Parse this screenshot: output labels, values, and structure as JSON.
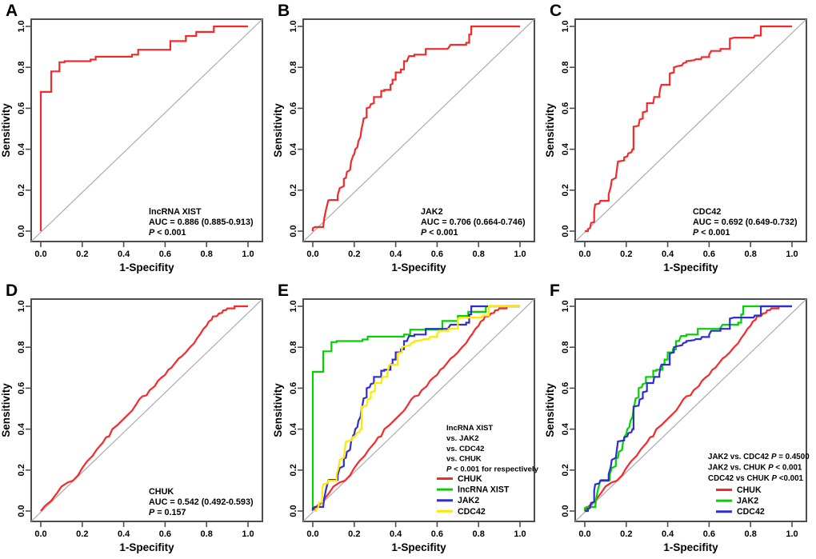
{
  "figure_title": "ROC curve figure, panels A-F",
  "colors": {
    "red": "#F42A2A",
    "green": "#00D300",
    "blue": "#2E2ED0",
    "yellow": "#FFE800",
    "diagonal": "#ABABAB",
    "box": "#4D4D4D",
    "text": "#000000",
    "background": "#FFFFFF"
  },
  "axes": {
    "x_label": "1-Specifity",
    "y_label": "Sensitivity",
    "tick_values": [
      0,
      0.2,
      0.4,
      0.6,
      0.8,
      1
    ],
    "tick_labels": [
      "0.0",
      "0.2",
      "0.4",
      "0.6",
      "0.8",
      "1.0"
    ],
    "xlim": [
      0,
      1
    ],
    "ylim": [
      0,
      1
    ],
    "grid": "off",
    "diagonal_reference": true
  },
  "roc_curves": {
    "lncRNA XIST": [
      [
        0,
        0
      ],
      [
        0,
        0.68
      ],
      [
        0.05,
        0.68
      ],
      [
        0.05,
        0.78
      ],
      [
        0.09,
        0.78
      ],
      [
        0.09,
        0.825
      ],
      [
        0.115,
        0.825
      ],
      [
        0.115,
        0.83
      ],
      [
        0.24,
        0.83
      ],
      [
        0.24,
        0.838
      ],
      [
        0.265,
        0.838
      ],
      [
        0.265,
        0.852
      ],
      [
        0.44,
        0.852
      ],
      [
        0.44,
        0.862
      ],
      [
        0.47,
        0.862
      ],
      [
        0.47,
        0.886
      ],
      [
        0.625,
        0.886
      ],
      [
        0.625,
        0.928
      ],
      [
        0.7,
        0.928
      ],
      [
        0.7,
        0.953
      ],
      [
        0.75,
        0.953
      ],
      [
        0.75,
        0.973
      ],
      [
        0.835,
        0.973
      ],
      [
        0.835,
        1
      ],
      [
        1,
        1
      ]
    ],
    "JAK2": [
      [
        0,
        0
      ],
      [
        0,
        0.014
      ],
      [
        0.01,
        0.02
      ],
      [
        0.05,
        0.02
      ],
      [
        0.055,
        0.06
      ],
      [
        0.065,
        0.11
      ],
      [
        0.075,
        0.15
      ],
      [
        0.08,
        0.152
      ],
      [
        0.12,
        0.152
      ],
      [
        0.12,
        0.175
      ],
      [
        0.13,
        0.21
      ],
      [
        0.14,
        0.215
      ],
      [
        0.15,
        0.22
      ],
      [
        0.15,
        0.255
      ],
      [
        0.16,
        0.26
      ],
      [
        0.165,
        0.29
      ],
      [
        0.175,
        0.295
      ],
      [
        0.18,
        0.3
      ],
      [
        0.185,
        0.34
      ],
      [
        0.195,
        0.37
      ],
      [
        0.2,
        0.375
      ],
      [
        0.205,
        0.4
      ],
      [
        0.215,
        0.41
      ],
      [
        0.22,
        0.44
      ],
      [
        0.23,
        0.46
      ],
      [
        0.235,
        0.5
      ],
      [
        0.24,
        0.52
      ],
      [
        0.245,
        0.55
      ],
      [
        0.26,
        0.555
      ],
      [
        0.26,
        0.6
      ],
      [
        0.275,
        0.605
      ],
      [
        0.28,
        0.62
      ],
      [
        0.295,
        0.625
      ],
      [
        0.295,
        0.655
      ],
      [
        0.33,
        0.655
      ],
      [
        0.33,
        0.685
      ],
      [
        0.345,
        0.685
      ],
      [
        0.345,
        0.69
      ],
      [
        0.375,
        0.69
      ],
      [
        0.375,
        0.715
      ],
      [
        0.385,
        0.72
      ],
      [
        0.385,
        0.74
      ],
      [
        0.4,
        0.74
      ],
      [
        0.4,
        0.775
      ],
      [
        0.425,
        0.775
      ],
      [
        0.425,
        0.79
      ],
      [
        0.44,
        0.79
      ],
      [
        0.44,
        0.83
      ],
      [
        0.455,
        0.83
      ],
      [
        0.46,
        0.845
      ],
      [
        0.465,
        0.855
      ],
      [
        0.49,
        0.855
      ],
      [
        0.49,
        0.862
      ],
      [
        0.545,
        0.862
      ],
      [
        0.545,
        0.89
      ],
      [
        0.65,
        0.89
      ],
      [
        0.655,
        0.895
      ],
      [
        0.665,
        0.91
      ],
      [
        0.74,
        0.91
      ],
      [
        0.74,
        0.92
      ],
      [
        0.755,
        0.92
      ],
      [
        0.755,
        0.96
      ],
      [
        0.765,
        0.96
      ],
      [
        0.765,
        1
      ],
      [
        1,
        1
      ]
    ],
    "CDC42": [
      [
        0,
        0
      ],
      [
        0.015,
        0
      ],
      [
        0.015,
        0.01
      ],
      [
        0.025,
        0.015
      ],
      [
        0.03,
        0.04
      ],
      [
        0.045,
        0.045
      ],
      [
        0.045,
        0.1
      ],
      [
        0.05,
        0.13
      ],
      [
        0.07,
        0.135
      ],
      [
        0.075,
        0.148
      ],
      [
        0.115,
        0.148
      ],
      [
        0.115,
        0.18
      ],
      [
        0.125,
        0.215
      ],
      [
        0.13,
        0.25
      ],
      [
        0.14,
        0.255
      ],
      [
        0.15,
        0.26
      ],
      [
        0.155,
        0.3
      ],
      [
        0.16,
        0.34
      ],
      [
        0.19,
        0.345
      ],
      [
        0.19,
        0.36
      ],
      [
        0.205,
        0.365
      ],
      [
        0.21,
        0.38
      ],
      [
        0.225,
        0.385
      ],
      [
        0.23,
        0.4
      ],
      [
        0.235,
        0.4
      ],
      [
        0.235,
        0.51
      ],
      [
        0.26,
        0.515
      ],
      [
        0.265,
        0.545
      ],
      [
        0.28,
        0.55
      ],
      [
        0.28,
        0.58
      ],
      [
        0.3,
        0.585
      ],
      [
        0.3,
        0.625
      ],
      [
        0.33,
        0.625
      ],
      [
        0.335,
        0.655
      ],
      [
        0.36,
        0.655
      ],
      [
        0.36,
        0.67
      ],
      [
        0.365,
        0.7
      ],
      [
        0.37,
        0.715
      ],
      [
        0.41,
        0.715
      ],
      [
        0.41,
        0.77
      ],
      [
        0.43,
        0.775
      ],
      [
        0.43,
        0.8
      ],
      [
        0.445,
        0.805
      ],
      [
        0.47,
        0.81
      ],
      [
        0.475,
        0.82
      ],
      [
        0.49,
        0.825
      ],
      [
        0.49,
        0.83
      ],
      [
        0.53,
        0.835
      ],
      [
        0.535,
        0.84
      ],
      [
        0.56,
        0.84
      ],
      [
        0.565,
        0.85
      ],
      [
        0.6,
        0.85
      ],
      [
        0.6,
        0.862
      ],
      [
        0.61,
        0.88
      ],
      [
        0.655,
        0.88
      ],
      [
        0.655,
        0.89
      ],
      [
        0.7,
        0.89
      ],
      [
        0.7,
        0.94
      ],
      [
        0.72,
        0.945
      ],
      [
        0.815,
        0.945
      ],
      [
        0.82,
        0.955
      ],
      [
        0.85,
        0.955
      ],
      [
        0.85,
        1
      ],
      [
        1,
        1
      ]
    ],
    "CHUK": [
      [
        0,
        0
      ],
      [
        0.02,
        0.025
      ],
      [
        0.05,
        0.05
      ],
      [
        0.08,
        0.09
      ],
      [
        0.1,
        0.12
      ],
      [
        0.13,
        0.14
      ],
      [
        0.155,
        0.148
      ],
      [
        0.18,
        0.175
      ],
      [
        0.2,
        0.21
      ],
      [
        0.225,
        0.245
      ],
      [
        0.25,
        0.27
      ],
      [
        0.27,
        0.3
      ],
      [
        0.3,
        0.335
      ],
      [
        0.315,
        0.36
      ],
      [
        0.33,
        0.365
      ],
      [
        0.345,
        0.4
      ],
      [
        0.37,
        0.42
      ],
      [
        0.4,
        0.45
      ],
      [
        0.42,
        0.47
      ],
      [
        0.44,
        0.49
      ],
      [
        0.46,
        0.52
      ],
      [
        0.475,
        0.545
      ],
      [
        0.49,
        0.56
      ],
      [
        0.51,
        0.565
      ],
      [
        0.525,
        0.59
      ],
      [
        0.55,
        0.61
      ],
      [
        0.565,
        0.635
      ],
      [
        0.58,
        0.65
      ],
      [
        0.6,
        0.665
      ],
      [
        0.615,
        0.69
      ],
      [
        0.63,
        0.7
      ],
      [
        0.65,
        0.725
      ],
      [
        0.665,
        0.745
      ],
      [
        0.68,
        0.755
      ],
      [
        0.7,
        0.775
      ],
      [
        0.72,
        0.8
      ],
      [
        0.74,
        0.82
      ],
      [
        0.755,
        0.845
      ],
      [
        0.77,
        0.865
      ],
      [
        0.785,
        0.89
      ],
      [
        0.8,
        0.905
      ],
      [
        0.81,
        0.925
      ],
      [
        0.825,
        0.935
      ],
      [
        0.83,
        0.95
      ],
      [
        0.85,
        0.952
      ],
      [
        0.86,
        0.965
      ],
      [
        0.875,
        0.968
      ],
      [
        0.88,
        0.98
      ],
      [
        0.895,
        0.982
      ],
      [
        0.9,
        0.99
      ],
      [
        0.935,
        0.99
      ],
      [
        0.935,
        1
      ],
      [
        0.96,
        1
      ],
      [
        1,
        1
      ]
    ]
  },
  "chart_data": [
    {
      "panel": "A",
      "type": "line",
      "xlabel": "1-Specifity",
      "ylabel": "Sensitivity",
      "series": [
        {
          "name": "lncRNA XIST",
          "color": "red",
          "curve": "lncRNA XIST"
        }
      ],
      "annotation_lines": [
        "lncRNA XIST",
        "AUC = 0.886 (0.885-0.913)",
        "P < 0.001"
      ]
    },
    {
      "panel": "B",
      "type": "line",
      "xlabel": "1-Specifity",
      "ylabel": "Sensitivity",
      "series": [
        {
          "name": "JAK2",
          "color": "red",
          "curve": "JAK2"
        }
      ],
      "annotation_lines": [
        "JAK2",
        "AUC = 0.706 (0.664-0.746)",
        "P < 0.001"
      ]
    },
    {
      "panel": "C",
      "type": "line",
      "xlabel": "1-Specifity",
      "ylabel": "Sensitivity",
      "series": [
        {
          "name": "CDC42",
          "color": "red",
          "curve": "CDC42"
        }
      ],
      "annotation_lines": [
        "CDC42",
        "AUC = 0.692 (0.649-0.732)",
        "P < 0.001"
      ]
    },
    {
      "panel": "D",
      "type": "line",
      "xlabel": "1-Specifity",
      "ylabel": "Sensitivity",
      "series": [
        {
          "name": "CHUK",
          "color": "red",
          "curve": "CHUK"
        }
      ],
      "annotation_lines": [
        "CHUK",
        "AUC = 0.542 (0.492-0.593)",
        "P = 0.157"
      ]
    },
    {
      "panel": "E",
      "type": "line",
      "xlabel": "1-Specifity",
      "ylabel": "Sensitivity",
      "series": [
        {
          "name": "CHUK",
          "color": "red",
          "curve": "CHUK"
        },
        {
          "name": "lncRNA XIST",
          "color": "green",
          "curve": "lncRNA XIST"
        },
        {
          "name": "JAK2",
          "color": "blue",
          "curve": "JAK2"
        },
        {
          "name": "CDC42",
          "color": "yellow",
          "curve": "CDC42"
        }
      ],
      "annotation_lines": [
        "lncRNA XIST",
        "vs. JAK2",
        "vs. CDC42",
        "vs. CHUK",
        "P < 0.001 for respectively"
      ],
      "legend": [
        {
          "label": "CHUK",
          "color": "red"
        },
        {
          "label": "lncRNA XIST",
          "color": "green"
        },
        {
          "label": "JAK2",
          "color": "blue"
        },
        {
          "label": "CDC42",
          "color": "yellow"
        }
      ]
    },
    {
      "panel": "F",
      "type": "line",
      "xlabel": "1-Specifity",
      "ylabel": "Sensitivity",
      "series": [
        {
          "name": "CHUK",
          "color": "red",
          "curve": "CHUK"
        },
        {
          "name": "JAK2",
          "color": "green",
          "curve": "JAK2"
        },
        {
          "name": "CDC42",
          "color": "blue",
          "curve": "CDC42"
        }
      ],
      "annotation_lines": [
        "JAK2 vs. CDC42 P = 0.4500",
        "JAK2 vs. CHUK P < 0.001",
        "CDC42 vs CHUK P <0.001"
      ],
      "legend": [
        {
          "label": "CHUK",
          "color": "red"
        },
        {
          "label": "JAK2",
          "color": "green"
        },
        {
          "label": "CDC42",
          "color": "blue"
        }
      ]
    }
  ]
}
